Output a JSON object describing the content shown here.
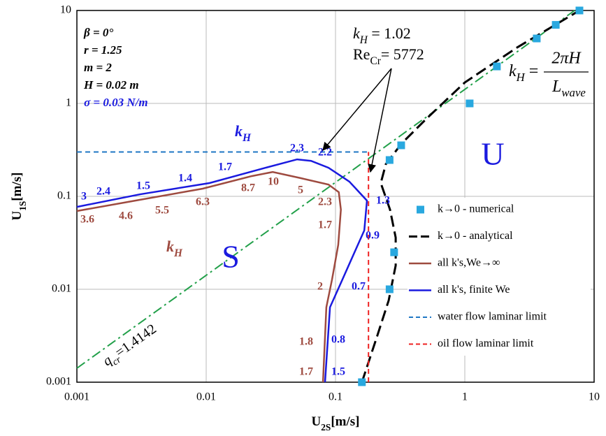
{
  "chart_data": {
    "type": "line",
    "log_x": true,
    "log_y": true,
    "grid": true,
    "xlim": [
      0.001,
      10
    ],
    "ylim": [
      0.001,
      10
    ],
    "xticks": [
      0.001,
      0.01,
      0.1,
      1,
      10
    ],
    "yticks": [
      0.001,
      0.01,
      0.1,
      1,
      10
    ],
    "x_label": {
      "main": "U",
      "sub": "2S",
      "unit": "[m/s]"
    },
    "y_label": {
      "main": "U",
      "sub": "1S",
      "unit": "[m/s]"
    },
    "legend": "right",
    "series": [
      {
        "name": "k→0 - numerical",
        "color": "#29a8df",
        "style": "markers",
        "x": [
          0.16,
          0.262,
          0.284,
          0.262,
          0.322,
          1.09,
          1.77,
          3.6,
          5.05,
          7.7
        ],
        "values": [
          0.001,
          0.01,
          0.025,
          0.246,
          0.354,
          1,
          2.5,
          5,
          7,
          10
        ]
      },
      {
        "name": "k→0 - analytical",
        "color": "#000000",
        "style": "dash",
        "x": [
          0.16,
          0.211,
          0.258,
          0.292,
          0.292,
          0.264,
          0.224,
          0.245,
          0.326,
          0.505,
          1,
          2.54,
          7.7
        ],
        "values": [
          0.001,
          0.0032,
          0.0076,
          0.018,
          0.036,
          0.072,
          0.139,
          0.222,
          0.372,
          0.684,
          1.68,
          4.0,
          10
        ]
      },
      {
        "name": "all k's,We→∞",
        "color": "#9e4a3f",
        "style": "solid",
        "x": [
          0.001,
          0.00306,
          0.0094,
          0.0224,
          0.0327,
          0.0537,
          0.0883,
          0.106,
          0.11,
          0.105,
          0.094,
          0.085,
          0.08
        ],
        "values": [
          0.0695,
          0.0917,
          0.121,
          0.165,
          0.183,
          0.157,
          0.134,
          0.111,
          0.072,
          0.03,
          0.0127,
          0.0064,
          0.001
        ]
      },
      {
        "name": "all k's, finite We",
        "color": "#1a1adf",
        "style": "solid",
        "x": [
          0.001,
          0.00306,
          0.0106,
          0.0288,
          0.0505,
          0.0647,
          0.0883,
          0.128,
          0.175,
          0.167,
          0.113,
          0.0906,
          0.083
        ],
        "values": [
          0.077,
          0.105,
          0.139,
          0.203,
          0.25,
          0.241,
          0.203,
          0.144,
          0.09,
          0.043,
          0.0127,
          0.0064,
          0.001
        ]
      },
      {
        "name": "water flow laminar limit",
        "color": "#1f77c4",
        "style": "shortdash",
        "x": [
          0.001,
          0.175
        ],
        "values": [
          0.3,
          0.3
        ]
      },
      {
        "name": "oil flow laminar limit",
        "color": "#ee2222",
        "style": "shortdash",
        "x": [
          0.18,
          0.18
        ],
        "values": [
          0.001,
          0.3
        ]
      }
    ],
    "reference_line": {
      "symbol": "q",
      "sub": "cr",
      "text": "=1.4142",
      "color": "#22a04a",
      "x": [
        0.001,
        7.07
      ],
      "values": [
        0.0014142,
        10
      ]
    },
    "parameters": [
      "β = 0°",
      "r = 1.25",
      "m = 2",
      "H = 0.02 m",
      "σ = 0.03 N/m"
    ],
    "critical": [
      {
        "symbol": "k",
        "sub": "H",
        "text": " = 1.02"
      },
      {
        "symbol": "Re",
        "sub": "Cr",
        "text": "= 5772"
      }
    ],
    "formula": {
      "symbol": "k",
      "sub": "H",
      "eq": "=",
      "numerator": "2πH",
      "denominator": "L",
      "den_sub": "wave"
    },
    "kh_blue": {
      "symbol": "k",
      "sub": "H"
    },
    "kh_red": {
      "symbol": "k",
      "sub": "H"
    },
    "region_stable": "S",
    "region_unstable": "U",
    "blue_labels": [
      "3",
      "2.4",
      "1.5",
      "1.4",
      "1.7",
      "2.3",
      "2.2",
      "1.3",
      "0.9",
      "0.7",
      "0.8",
      "1.5"
    ],
    "red_labels": [
      "3.6",
      "4.6",
      "5.5",
      "6.3",
      "8.7",
      "10",
      "5",
      "2.3",
      "1.7",
      "2",
      "1.8",
      "1.7"
    ]
  }
}
